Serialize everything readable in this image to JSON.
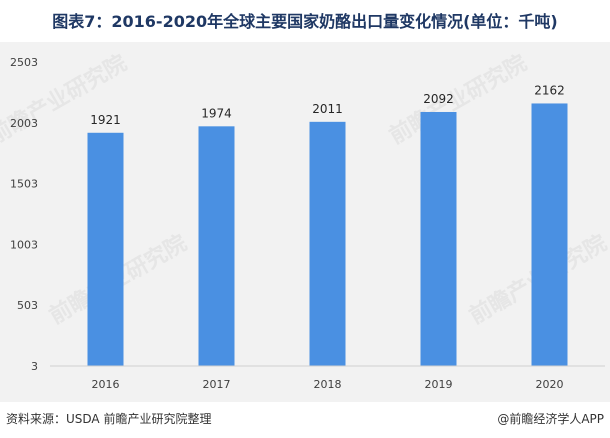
{
  "header": {
    "title": "图表7：2016-2020年全球主要国家奶酪出口量变化情况(单位：千吨)"
  },
  "footer": {
    "source": "资料来源：USDA 前瞻产业研究院整理",
    "credit": "@前瞻经济学人APP"
  },
  "watermark": {
    "text": "前瞻产业研究院"
  },
  "colors": {
    "bar": "#4a90e2",
    "panel": "#f2f2f2",
    "title": "#1f3864"
  },
  "chart_data": {
    "type": "bar",
    "title": "图表7：2016-2020年全球主要国家奶酪出口量变化情况(单位：千吨)",
    "xlabel": "",
    "ylabel": "",
    "categories": [
      "2016",
      "2017",
      "2018",
      "2019",
      "2020"
    ],
    "values": [
      1921,
      1974,
      2011,
      2092,
      2162
    ],
    "ylim": [
      3,
      2503
    ],
    "yticks": [
      3,
      503,
      1003,
      1503,
      2003,
      2503
    ],
    "grid": false,
    "legend": "none"
  }
}
